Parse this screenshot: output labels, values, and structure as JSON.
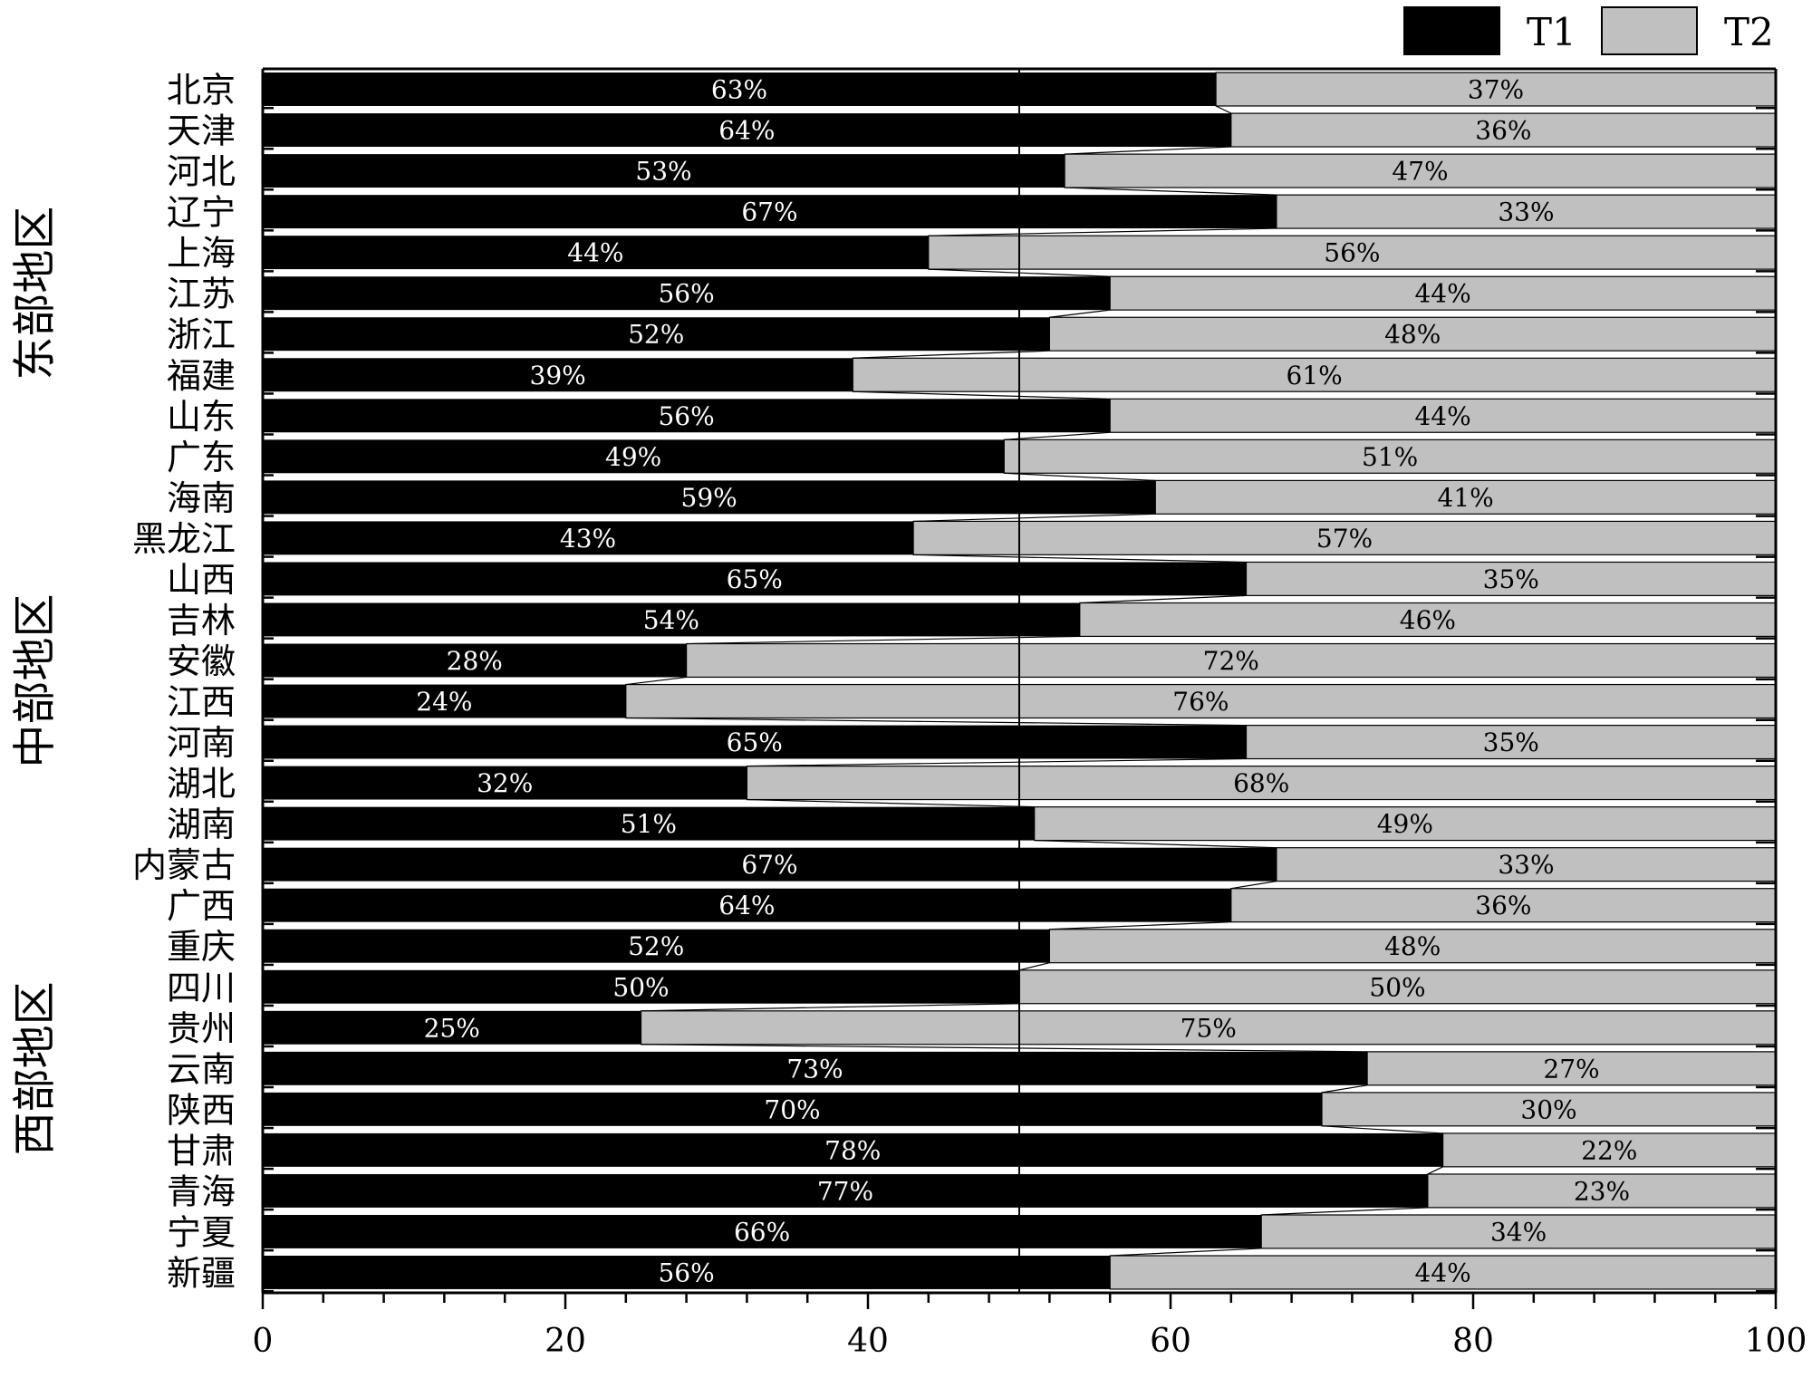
{
  "chart_data": {
    "type": "bar",
    "orientation": "horizontal",
    "stacked": true,
    "categories": [
      "北京",
      "天津",
      "河北",
      "辽宁",
      "上海",
      "江苏",
      "浙江",
      "福建",
      "山东",
      "广东",
      "海南",
      "黑龙江",
      "山西",
      "吉林",
      "安徽",
      "江西",
      "河南",
      "湖北",
      "湖南",
      "内蒙古",
      "广西",
      "重庆",
      "四川",
      "贵州",
      "云南",
      "陕西",
      "甘肃",
      "青海",
      "宁夏",
      "新疆"
    ],
    "series": [
      {
        "name": "T1",
        "color": "#000000",
        "label_color": "#ffffff",
        "values": [
          63,
          64,
          53,
          67,
          44,
          56,
          52,
          39,
          56,
          49,
          59,
          43,
          65,
          54,
          28,
          24,
          65,
          32,
          51,
          67,
          64,
          52,
          50,
          25,
          73,
          70,
          78,
          77,
          66,
          56
        ],
        "labels": [
          "63%",
          "64%",
          "53%",
          "67%",
          "44%",
          "56%",
          "52%",
          "39%",
          "56%",
          "49%",
          "59%",
          "43%",
          "65%",
          "54%",
          "28%",
          "24%",
          "65%",
          "32%",
          "51%",
          "67%",
          "64%",
          "52%",
          "50%",
          "25%",
          "73%",
          "70%",
          "78%",
          "77%",
          "66%",
          "56%"
        ]
      },
      {
        "name": "T2",
        "color": "#c0c0c0",
        "label_color": "#000000",
        "values": [
          37,
          36,
          47,
          33,
          56,
          44,
          48,
          61,
          44,
          51,
          41,
          57,
          35,
          46,
          72,
          76,
          35,
          68,
          49,
          33,
          36,
          48,
          50,
          75,
          27,
          30,
          22,
          23,
          34,
          44
        ],
        "labels": [
          "37%",
          "36%",
          "47%",
          "33%",
          "56%",
          "44%",
          "48%",
          "61%",
          "44%",
          "51%",
          "41%",
          "57%",
          "35%",
          "46%",
          "72%",
          "76%",
          "35%",
          "68%",
          "49%",
          "33%",
          "36%",
          "48%",
          "50%",
          "75%",
          "27%",
          "30%",
          "22%",
          "23%",
          "34%",
          "44%"
        ]
      }
    ],
    "regions": [
      {
        "name": "东部地区",
        "from": 0,
        "to": 10
      },
      {
        "name": "中部地区",
        "from": 11,
        "to": 18
      },
      {
        "name": "西部地区",
        "from": 19,
        "to": 29
      }
    ],
    "xlim": [
      0,
      100
    ],
    "xticks": [
      0,
      20,
      40,
      60,
      80,
      100
    ],
    "xtick_labels": [
      "0",
      "20",
      "40",
      "60",
      "80",
      "100"
    ],
    "reference_line": 50,
    "legend_position": "top-right",
    "connector_lines": true,
    "grid": false
  }
}
